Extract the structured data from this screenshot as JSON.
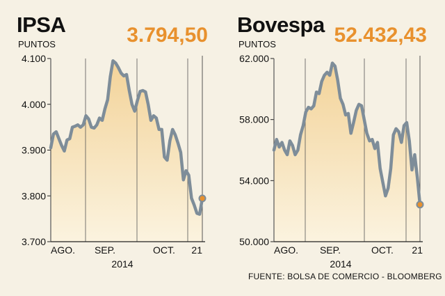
{
  "source": "FUENTE: BOLSA DE COMERCIO - BLOOMBERG",
  "colors": {
    "line": "#7e8d99",
    "fill_top": "#f3d399",
    "fill_bottom": "#fbf3df",
    "accent": "#e8912e",
    "background": "#f6f1e4"
  },
  "chart_data": [
    {
      "type": "area",
      "title": "IPSA",
      "current_value": "3.794,50",
      "unit": "PUNTOS",
      "ylim": [
        3700,
        4100
      ],
      "y_ticks": [
        "4.100",
        "4.000",
        "3.900",
        "3.800",
        "3.700"
      ],
      "y_tick_values": [
        4100,
        4000,
        3900,
        3800,
        3700
      ],
      "x_labels": [
        "AGO.",
        "SEP.",
        "OCT.",
        "21"
      ],
      "x_year": "2014",
      "series": [
        {
          "values": [
            3905,
            3935,
            3940,
            3925,
            3910,
            3898,
            3922,
            3925,
            3950,
            3952,
            3955,
            3950,
            3955,
            3975,
            3968,
            3950,
            3948,
            3955,
            3970,
            3965,
            3990,
            4010,
            4060,
            4095,
            4090,
            4080,
            4068,
            4062,
            4065,
            4030,
            4000,
            3985,
            4008,
            4028,
            4030,
            4027,
            4000,
            3965,
            3975,
            3970,
            3945,
            3945,
            3885,
            3878,
            3920,
            3945,
            3933,
            3915,
            3895,
            3835,
            3855,
            3845,
            3795,
            3780,
            3762,
            3760,
            3794.5
          ]
        }
      ]
    },
    {
      "type": "area",
      "title": "Bovespa",
      "current_value": "52.432,43",
      "unit": "PUNTOS",
      "ylim": [
        50000,
        62000
      ],
      "y_ticks": [
        "62.000",
        "58.000",
        "54.000",
        "50.000"
      ],
      "y_tick_values": [
        62000,
        58000,
        54000,
        50000
      ],
      "x_labels": [
        "AGO.",
        "SEP.",
        "OCT.",
        "21"
      ],
      "x_year": "2014",
      "series": [
        {
          "values": [
            56000,
            56700,
            56200,
            56500,
            56000,
            55700,
            56600,
            56300,
            55700,
            56000,
            57000,
            57600,
            58500,
            58800,
            58700,
            58900,
            59800,
            59700,
            60500,
            60900,
            61100,
            60900,
            61700,
            61500,
            60600,
            59400,
            59000,
            58300,
            58400,
            57100,
            57800,
            58600,
            59000,
            58900,
            58000,
            57100,
            56600,
            56700,
            56100,
            56500,
            54800,
            53900,
            53000,
            53500,
            54800,
            57000,
            57400,
            57200,
            56500,
            57600,
            57800,
            56600,
            54700,
            55700,
            54200,
            52432.43
          ]
        }
      ]
    }
  ]
}
